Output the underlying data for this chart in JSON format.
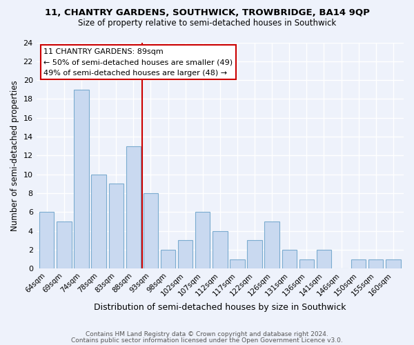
{
  "title1": "11, CHANTRY GARDENS, SOUTHWICK, TROWBRIDGE, BA14 9QP",
  "title2": "Size of property relative to semi-detached houses in Southwick",
  "xlabel": "Distribution of semi-detached houses by size in Southwick",
  "ylabel": "Number of semi-detached properties",
  "bins": [
    "64sqm",
    "69sqm",
    "74sqm",
    "78sqm",
    "83sqm",
    "88sqm",
    "93sqm",
    "98sqm",
    "102sqm",
    "107sqm",
    "112sqm",
    "117sqm",
    "122sqm",
    "126sqm",
    "131sqm",
    "136sqm",
    "141sqm",
    "146sqm",
    "150sqm",
    "155sqm",
    "160sqm"
  ],
  "values": [
    6,
    5,
    19,
    10,
    9,
    13,
    8,
    2,
    3,
    6,
    4,
    1,
    3,
    5,
    2,
    1,
    2,
    0,
    1,
    1,
    1
  ],
  "bar_color": "#c9d9f0",
  "bar_edge_color": "#7aabcf",
  "vline_color": "#cc0000",
  "annotation_title": "11 CHANTRY GARDENS: 89sqm",
  "annotation_line1": "← 50% of semi-detached houses are smaller (49)",
  "annotation_line2": "49% of semi-detached houses are larger (48) →",
  "annotation_box_color": "#ffffff",
  "annotation_box_edge": "#cc0000",
  "footer1": "Contains HM Land Registry data © Crown copyright and database right 2024.",
  "footer2": "Contains public sector information licensed under the Open Government Licence v3.0.",
  "ylim": [
    0,
    24
  ],
  "yticks": [
    0,
    2,
    4,
    6,
    8,
    10,
    12,
    14,
    16,
    18,
    20,
    22,
    24
  ],
  "background_color": "#eef2fb"
}
